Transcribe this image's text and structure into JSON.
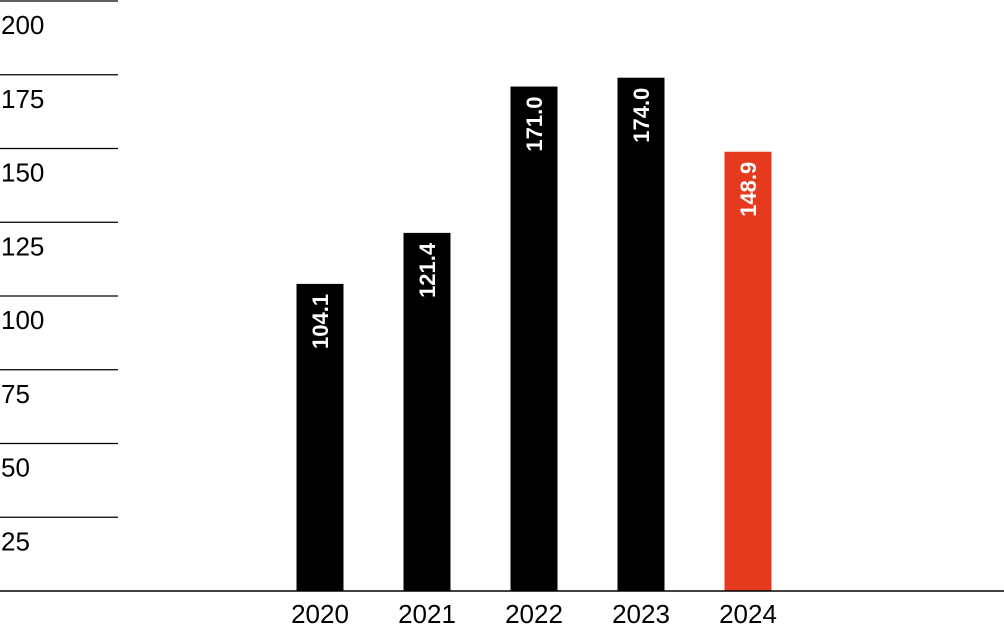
{
  "chart_data": {
    "type": "bar",
    "categories": [
      "2020",
      "2021",
      "2022",
      "2023",
      "2024"
    ],
    "values": [
      104.1,
      121.4,
      171.0,
      174.0,
      148.9
    ],
    "value_labels": [
      "104.1",
      "121.4",
      "171.0",
      "174.0",
      "148.9"
    ],
    "yticks": [
      "25",
      "50",
      "75",
      "100",
      "125",
      "150",
      "175",
      "200"
    ],
    "ytick_values": [
      25,
      50,
      75,
      100,
      125,
      150,
      175,
      200
    ],
    "ylim": [
      0,
      200
    ],
    "grid": true,
    "bar_colors": [
      "#000000",
      "#000000",
      "#000000",
      "#000000",
      "#e63a1f"
    ],
    "data_label_color": "#ffffff",
    "axis_color": "#000000"
  }
}
